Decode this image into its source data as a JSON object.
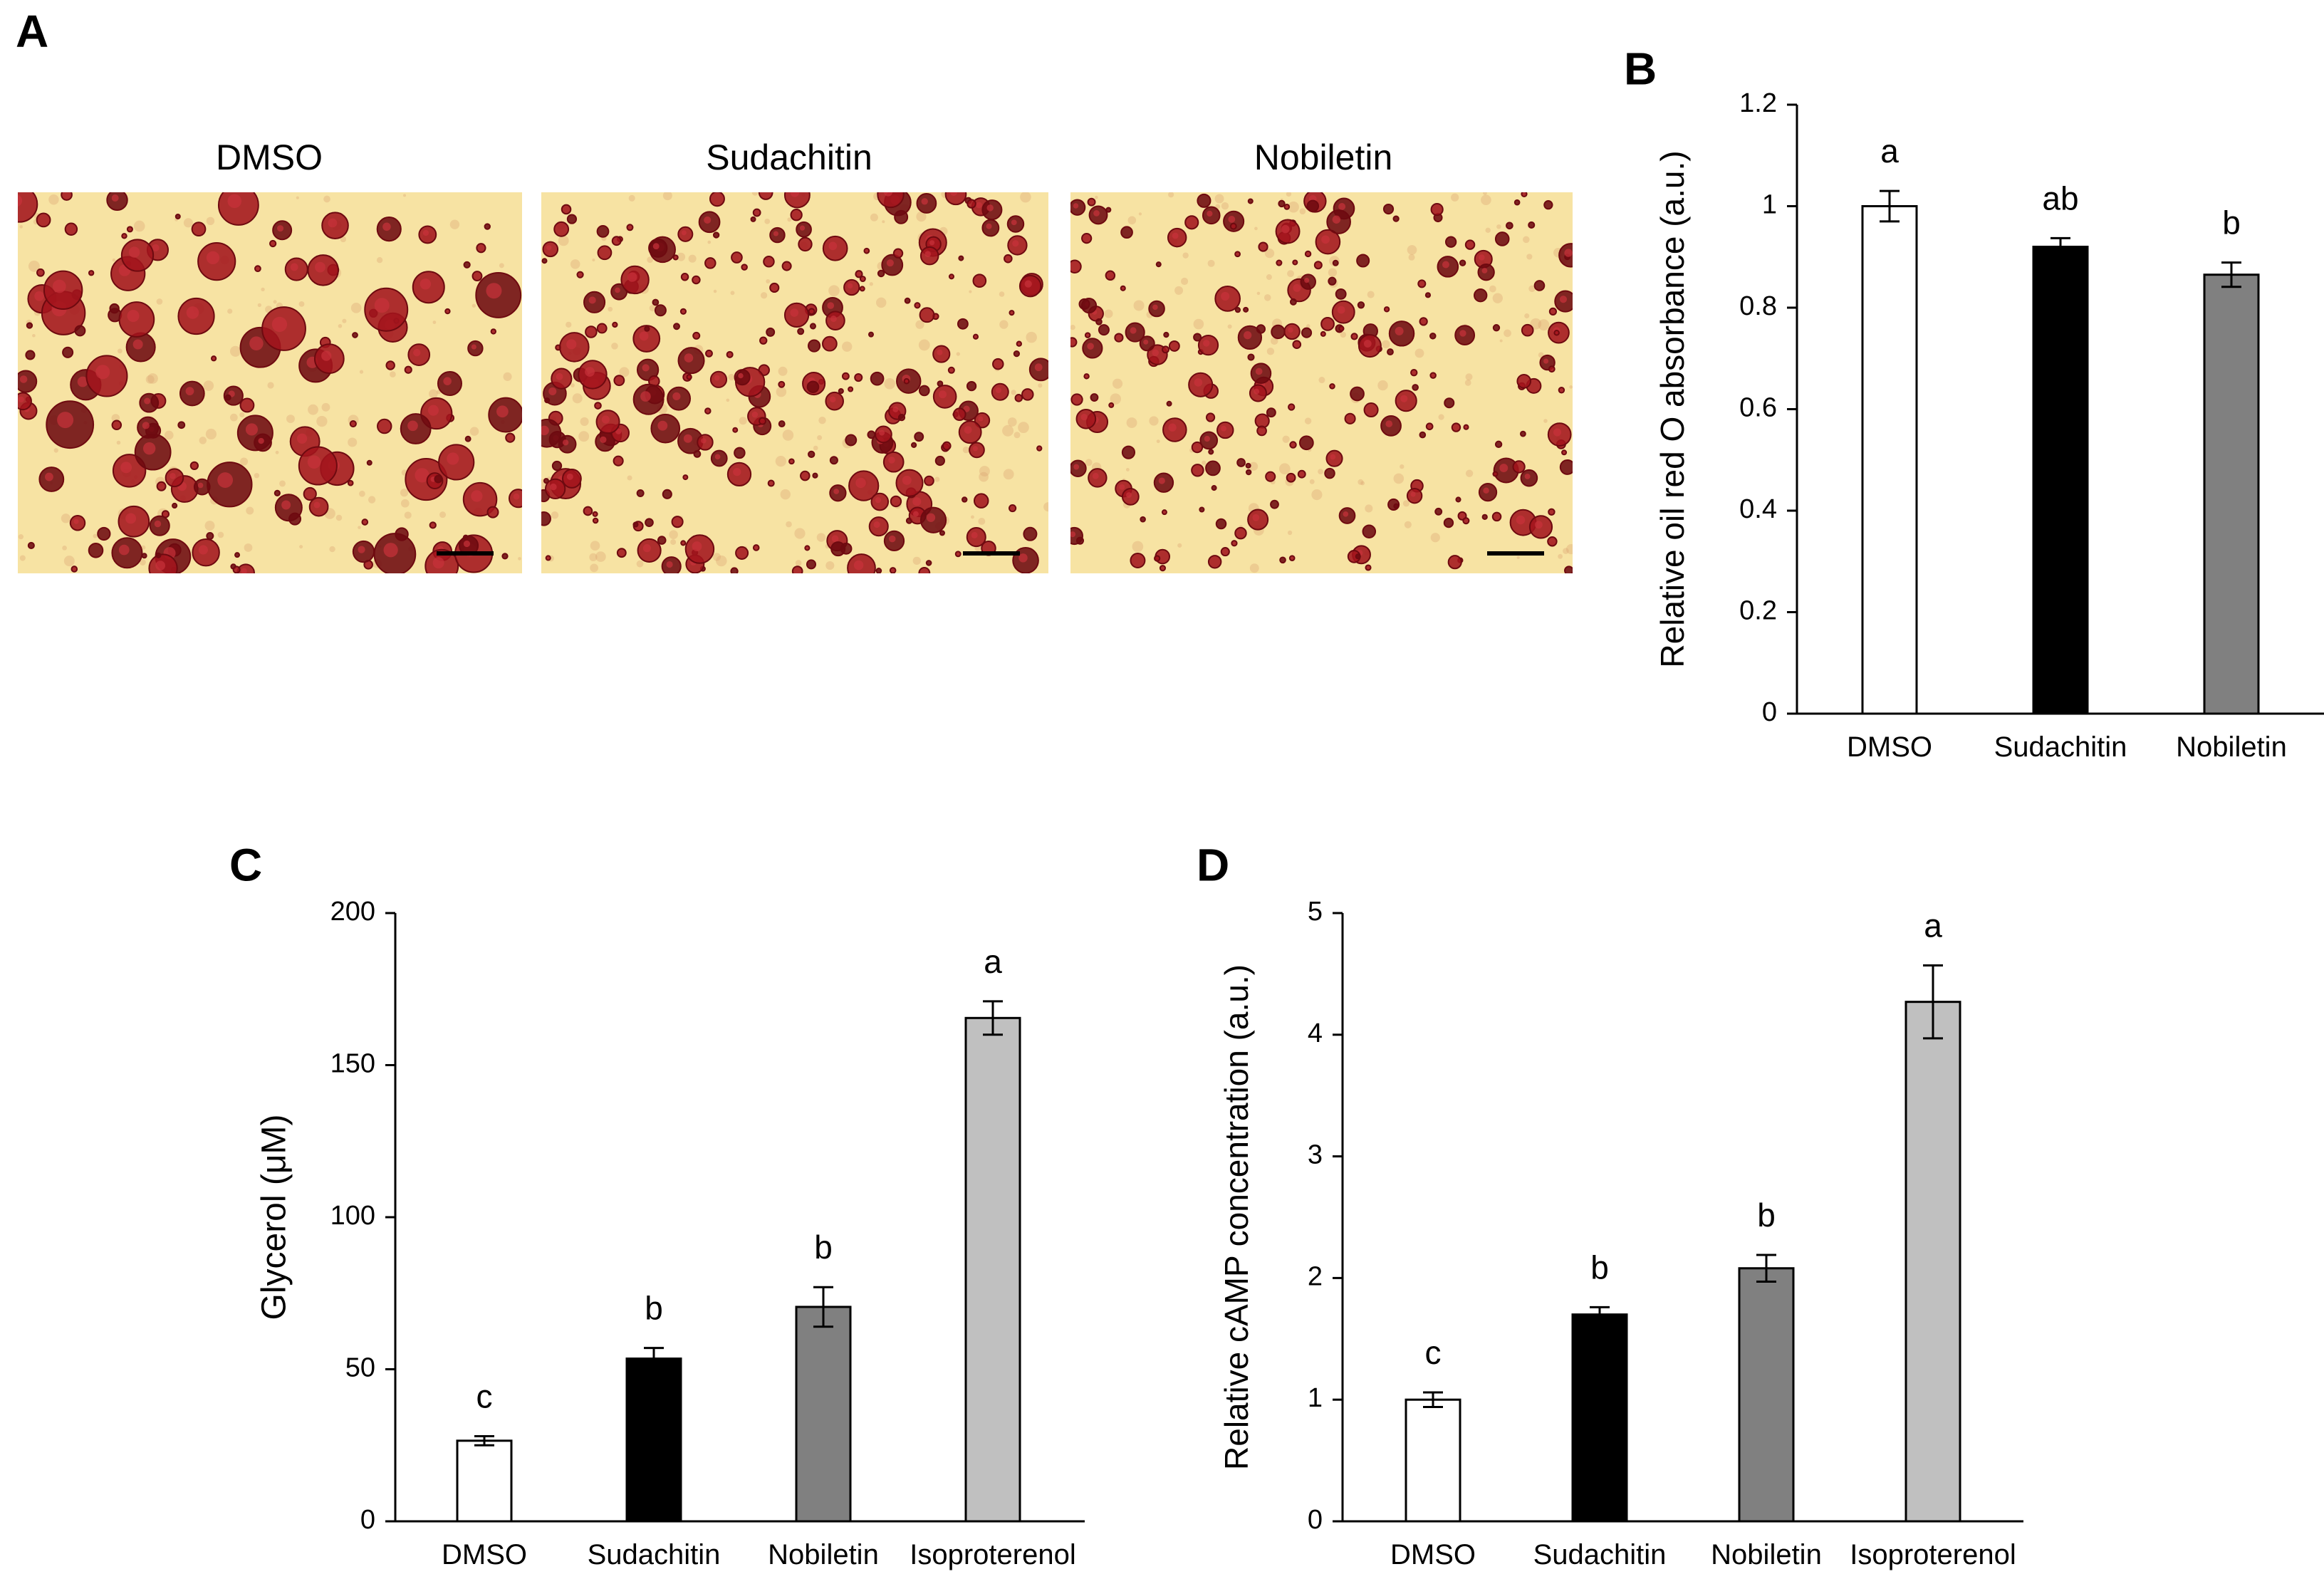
{
  "panel_a": {
    "letter": "A",
    "images": [
      {
        "label": "DMSO",
        "density": "high",
        "seed": 11
      },
      {
        "label": "Sudachitin",
        "density": "medium",
        "seed": 29
      },
      {
        "label": "Nobiletin",
        "density": "low",
        "seed": 47
      }
    ],
    "colors": {
      "background": "#f7e3a3",
      "stain": "#a3141c",
      "stain_dark": "#6e0a10",
      "scale_bar": "#000000"
    }
  },
  "chart_data": [
    {
      "panel": "B",
      "type": "bar",
      "title": "",
      "xlabel": "",
      "ylabel": "Relative oil red O absorbance (a.u.)",
      "categories": [
        "DMSO",
        "Sudachitin",
        "Nobiletin"
      ],
      "values": [
        1.0,
        0.92,
        0.865
      ],
      "errors": [
        0.03,
        0.017,
        0.024
      ],
      "significance": [
        "a",
        "ab",
        "b"
      ],
      "ylim": [
        0,
        1.2
      ],
      "yticks": [
        0,
        0.2,
        0.4,
        0.6,
        0.8,
        1,
        1.2
      ],
      "yticklabels": [
        "0",
        "0.2",
        "0.4",
        "0.6",
        "0.8",
        "1",
        "1.2"
      ],
      "bar_colors": [
        "#ffffff",
        "#000000",
        "#808080"
      ]
    },
    {
      "panel": "C",
      "type": "bar",
      "title": "",
      "xlabel": "",
      "ylabel": "Glycerol (μM)",
      "categories": [
        "DMSO",
        "Sudachitin",
        "Nobiletin",
        "Isoproterenol"
      ],
      "values": [
        26.5,
        53.5,
        70.5,
        165.5
      ],
      "errors": [
        1.5,
        3.5,
        6.5,
        5.5
      ],
      "significance": [
        "c",
        "b",
        "b",
        "a"
      ],
      "ylim": [
        0,
        200
      ],
      "yticks": [
        0,
        50,
        100,
        150,
        200
      ],
      "yticklabels": [
        "0",
        "50",
        "100",
        "150",
        "200"
      ],
      "bar_colors": [
        "#ffffff",
        "#000000",
        "#808080",
        "#c0c0c0"
      ]
    },
    {
      "panel": "D",
      "type": "bar",
      "title": "",
      "xlabel": "",
      "ylabel": "Relative cAMP concentration (a.u.)",
      "categories": [
        "DMSO",
        "Sudachitin",
        "Nobiletin",
        "Isoproterenol"
      ],
      "values": [
        1.0,
        1.7,
        2.08,
        4.27
      ],
      "errors": [
        0.06,
        0.06,
        0.11,
        0.3
      ],
      "significance": [
        "c",
        "b",
        "b",
        "a"
      ],
      "ylim": [
        0,
        5
      ],
      "yticks": [
        0,
        1,
        2,
        3,
        4,
        5
      ],
      "yticklabels": [
        "0",
        "1",
        "2",
        "3",
        "4",
        "5"
      ],
      "bar_colors": [
        "#ffffff",
        "#000000",
        "#808080",
        "#c0c0c0"
      ]
    }
  ]
}
